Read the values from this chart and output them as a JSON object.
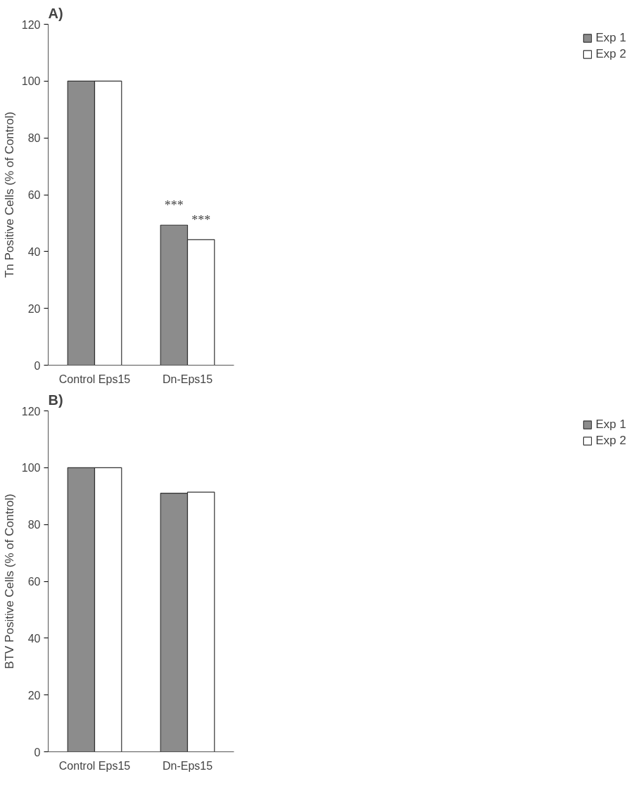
{
  "chart_data": [
    {
      "type": "bar",
      "title": "A)",
      "ylabel": "Tn Positive Cells (% of Control)",
      "categories": [
        "Control Eps15",
        "Dn-Eps15"
      ],
      "ylim": [
        0,
        120
      ],
      "yticks": [
        0,
        20,
        40,
        60,
        80,
        100,
        120
      ],
      "grid": false,
      "legend": "right",
      "series": [
        {
          "name": "Exp 1",
          "color": "#8c8c8c",
          "values": [
            100,
            49.3
          ],
          "value_labels": [
            null,
            "***"
          ]
        },
        {
          "name": "Exp 2",
          "color": "#ffffff",
          "values": [
            100,
            44.2
          ],
          "value_labels": [
            null,
            "***"
          ]
        }
      ]
    },
    {
      "type": "bar",
      "title": "B)",
      "ylabel": "BTV Positive Cells (% of Control)",
      "categories": [
        "Control Eps15",
        "Dn-Eps15"
      ],
      "ylim": [
        0,
        120
      ],
      "yticks": [
        0,
        20,
        40,
        60,
        80,
        100,
        120
      ],
      "grid": false,
      "legend": "right",
      "series": [
        {
          "name": "Exp 1",
          "color": "#8c8c8c",
          "values": [
            100,
            91
          ]
        },
        {
          "name": "Exp 2",
          "color": "#ffffff",
          "values": [
            100,
            91.4
          ]
        }
      ]
    }
  ]
}
